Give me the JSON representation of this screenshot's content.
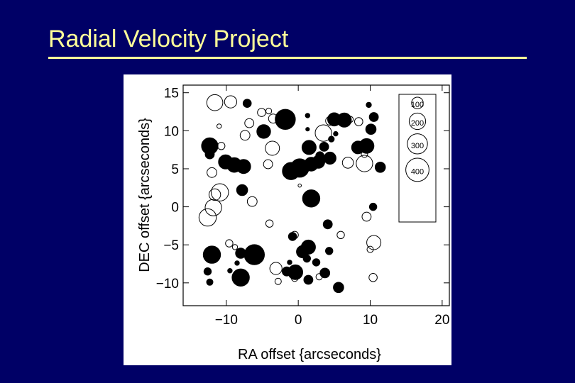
{
  "slide": {
    "title": "Radial Velocity Project",
    "title_color": "#ffff99",
    "background_color": "#000066",
    "rule_color": "#ffff99"
  },
  "chart_data": {
    "type": "scatter",
    "title": "",
    "xlabel": "RA offset {arcseconds}",
    "ylabel": "DEC offset {arcseconds}",
    "xlim": [
      -16,
      21
    ],
    "ylim": [
      -13,
      16
    ],
    "xticks": [
      -10,
      0,
      10,
      20
    ],
    "yticks": [
      -10,
      -5,
      0,
      5,
      10,
      15
    ],
    "xtick_labels": [
      "−10",
      "0",
      "10",
      "20"
    ],
    "ytick_labels": [
      "−10",
      "−5",
      "0",
      "5",
      "10",
      "15"
    ],
    "grid": false,
    "marker_encoding": "circle size scales with value; filled and open circles",
    "size_legend": {
      "placement": "top-right",
      "entries": [
        {
          "label": "100",
          "value": 100
        },
        {
          "label": "200",
          "value": 200
        },
        {
          "label": "300",
          "value": 300
        },
        {
          "label": "400",
          "value": 400
        }
      ]
    },
    "series": [
      {
        "style": "filled",
        "points": [
          {
            "x": -7.1,
            "y": 13.6,
            "v": 50
          },
          {
            "x": -1.8,
            "y": 11.5,
            "v": 300
          },
          {
            "x": -4.8,
            "y": 9.9,
            "v": 140
          },
          {
            "x": 1.3,
            "y": 12.0,
            "v": 15
          },
          {
            "x": 5.0,
            "y": 11.5,
            "v": 130
          },
          {
            "x": 6.4,
            "y": 11.4,
            "v": 150
          },
          {
            "x": 9.8,
            "y": 13.4,
            "v": 20
          },
          {
            "x": 10.5,
            "y": 11.8,
            "v": 60
          },
          {
            "x": 10.1,
            "y": 10.2,
            "v": 80
          },
          {
            "x": 1.3,
            "y": 10.2,
            "v": 10
          },
          {
            "x": 5.2,
            "y": 9.6,
            "v": 15
          },
          {
            "x": -12.3,
            "y": 8.0,
            "v": 200
          },
          {
            "x": -12.3,
            "y": 6.9,
            "v": 60
          },
          {
            "x": -10.1,
            "y": 5.9,
            "v": 150
          },
          {
            "x": -8.9,
            "y": 5.5,
            "v": 160
          },
          {
            "x": -7.6,
            "y": 5.3,
            "v": 150
          },
          {
            "x": 1.5,
            "y": 7.8,
            "v": 150
          },
          {
            "x": 3.6,
            "y": 7.9,
            "v": 60
          },
          {
            "x": 4.6,
            "y": 8.9,
            "v": 25
          },
          {
            "x": 3.0,
            "y": 6.7,
            "v": 50
          },
          {
            "x": 8.3,
            "y": 7.8,
            "v": 120
          },
          {
            "x": 9.5,
            "y": 8.0,
            "v": 160
          },
          {
            "x": -1.0,
            "y": 4.7,
            "v": 220
          },
          {
            "x": 0.2,
            "y": 5.1,
            "v": 250
          },
          {
            "x": 1.8,
            "y": 5.6,
            "v": 140
          },
          {
            "x": 2.8,
            "y": 5.9,
            "v": 120
          },
          {
            "x": 4.4,
            "y": 6.4,
            "v": 110
          },
          {
            "x": 11.4,
            "y": 5.2,
            "v": 80
          },
          {
            "x": -7.8,
            "y": 2.2,
            "v": 90
          },
          {
            "x": 1.8,
            "y": 1.1,
            "v": 220
          },
          {
            "x": 10.4,
            "y": 0.0,
            "v": 40
          },
          {
            "x": 4.1,
            "y": -2.3,
            "v": 60
          },
          {
            "x": 1.4,
            "y": -5.3,
            "v": 150
          },
          {
            "x": 0.6,
            "y": -5.9,
            "v": 110
          },
          {
            "x": -0.8,
            "y": -3.9,
            "v": 50
          },
          {
            "x": 4.3,
            "y": -5.8,
            "v": 40
          },
          {
            "x": -12.0,
            "y": -6.3,
            "v": 220
          },
          {
            "x": -6.1,
            "y": -6.3,
            "v": 300
          },
          {
            "x": -8.0,
            "y": -6.1,
            "v": 80
          },
          {
            "x": 1.2,
            "y": -6.8,
            "v": 40
          },
          {
            "x": 2.5,
            "y": -7.3,
            "v": 40
          },
          {
            "x": -1.2,
            "y": -7.3,
            "v": 15
          },
          {
            "x": -12.6,
            "y": -8.5,
            "v": 40
          },
          {
            "x": -8.0,
            "y": -9.3,
            "v": 220
          },
          {
            "x": -1.6,
            "y": -8.5,
            "v": 60
          },
          {
            "x": -0.4,
            "y": -8.6,
            "v": 160
          },
          {
            "x": 1.4,
            "y": -9.6,
            "v": 60
          },
          {
            "x": 3.7,
            "y": -8.7,
            "v": 70
          },
          {
            "x": -9.5,
            "y": -8.4,
            "v": 15
          },
          {
            "x": 5.6,
            "y": -10.6,
            "v": 80
          },
          {
            "x": -12.3,
            "y": -9.9,
            "v": 30
          },
          {
            "x": -8.5,
            "y": -7.4,
            "v": 15
          }
        ]
      },
      {
        "style": "open",
        "points": [
          {
            "x": -11.6,
            "y": 13.7,
            "v": 190
          },
          {
            "x": -9.4,
            "y": 13.8,
            "v": 110
          },
          {
            "x": -5.1,
            "y": 12.4,
            "v": 50
          },
          {
            "x": -3.5,
            "y": 11.6,
            "v": 60
          },
          {
            "x": -4.1,
            "y": 12.6,
            "v": 25
          },
          {
            "x": -6.8,
            "y": 11.0,
            "v": 60
          },
          {
            "x": -7.4,
            "y": 9.4,
            "v": 70
          },
          {
            "x": -11.0,
            "y": 10.6,
            "v": 15
          },
          {
            "x": 4.4,
            "y": 11.3,
            "v": 55
          },
          {
            "x": 8.4,
            "y": 11.2,
            "v": 50
          },
          {
            "x": 3.5,
            "y": 9.7,
            "v": 200
          },
          {
            "x": 7.2,
            "y": 11.5,
            "v": 30
          },
          {
            "x": -3.6,
            "y": 7.7,
            "v": 150
          },
          {
            "x": -10.7,
            "y": 8.0,
            "v": 40
          },
          {
            "x": -4.2,
            "y": 5.6,
            "v": 60
          },
          {
            "x": 6.9,
            "y": 5.8,
            "v": 90
          },
          {
            "x": 9.2,
            "y": 5.7,
            "v": 200
          },
          {
            "x": 9.2,
            "y": 6.9,
            "v": 30
          },
          {
            "x": -12.0,
            "y": 4.5,
            "v": 70
          },
          {
            "x": -11.6,
            "y": 1.6,
            "v": 100
          },
          {
            "x": -10.9,
            "y": 1.9,
            "v": 220
          },
          {
            "x": -11.8,
            "y": -0.1,
            "v": 200
          },
          {
            "x": -12.6,
            "y": -1.4,
            "v": 220
          },
          {
            "x": -6.4,
            "y": 0.7,
            "v": 70
          },
          {
            "x": -4.0,
            "y": -2.2,
            "v": 40
          },
          {
            "x": 9.5,
            "y": -1.3,
            "v": 60
          },
          {
            "x": 5.9,
            "y": -3.7,
            "v": 40
          },
          {
            "x": -0.5,
            "y": -3.7,
            "v": 40
          },
          {
            "x": 10.5,
            "y": -4.7,
            "v": 150
          },
          {
            "x": 10.0,
            "y": -5.6,
            "v": 30
          },
          {
            "x": -9.6,
            "y": -4.8,
            "v": 40
          },
          {
            "x": -3.1,
            "y": -8.1,
            "v": 110
          },
          {
            "x": -2.8,
            "y": -9.8,
            "v": 30
          },
          {
            "x": -0.5,
            "y": -9.4,
            "v": 30
          },
          {
            "x": 2.9,
            "y": -9.2,
            "v": 30
          },
          {
            "x": 10.4,
            "y": -9.3,
            "v": 50
          },
          {
            "x": -8.8,
            "y": -5.3,
            "v": 20
          },
          {
            "x": 0.2,
            "y": 2.8,
            "v": 8
          }
        ]
      }
    ]
  }
}
